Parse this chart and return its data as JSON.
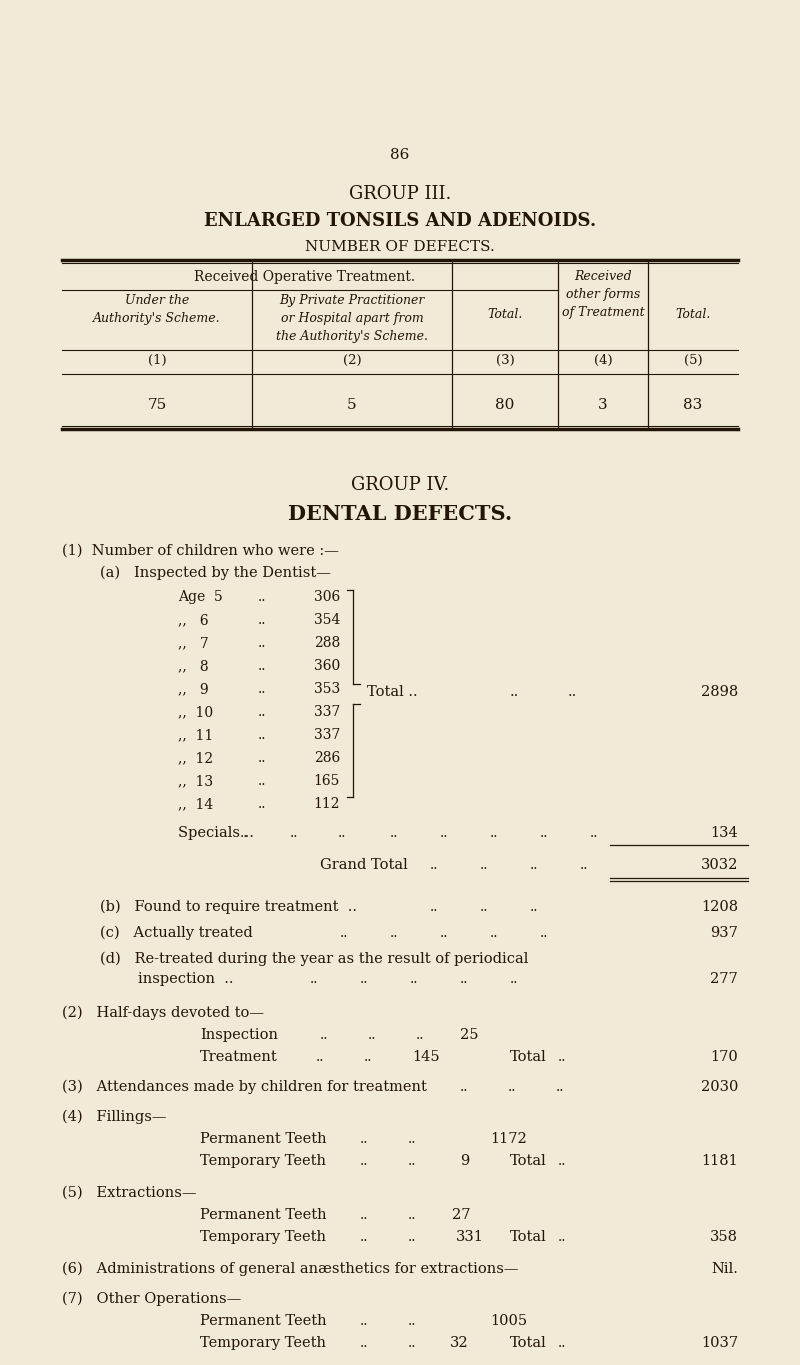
{
  "bg_color": "#f0ead6",
  "text_color": "#231508",
  "page_number": "86",
  "group3_title": "GROUP III.",
  "group3_subtitle": "ENLARGED TONSILS AND ADENOIDS.",
  "group3_sub2": "NUMBER OF DEFECTS.",
  "table_header_main": "Received Operative Treatment.",
  "table_col_nums": [
    "(1)",
    "(2)",
    "(3)",
    "(4)",
    "(5)"
  ],
  "table_data": [
    "75",
    "5",
    "80",
    "3",
    "83"
  ],
  "group4_title": "GROUP IV.",
  "group4_subtitle": "DENTAL DEFECTS.",
  "ages": [
    "Age  5",
    ",,   6",
    ",,   7",
    ",,   8",
    ",,   9",
    ",,  10",
    ",,  11",
    ",,  12",
    ",,  13",
    ",,  14"
  ],
  "age_values": [
    "306",
    "354",
    "288",
    "360",
    "353",
    "337",
    "337",
    "286",
    "165",
    "112"
  ],
  "age_total_value": "2898",
  "specials_value": "134",
  "grand_total_value": "3032",
  "b_value": "1208",
  "c_value": "937",
  "d_value": "277",
  "inspection_value": "25",
  "treatment_value": "145",
  "halfdays_total_value": "170",
  "section3_value": "2030",
  "perm_teeth_fillings": "1172",
  "temp_teeth_fillings": "9",
  "fillings_total": "1181",
  "perm_teeth_extract": "27",
  "temp_teeth_extract": "331",
  "extract_total": "358",
  "section6_value": "Nil.",
  "perm_teeth_other": "1005",
  "temp_teeth_other": "32",
  "other_total": "1037"
}
